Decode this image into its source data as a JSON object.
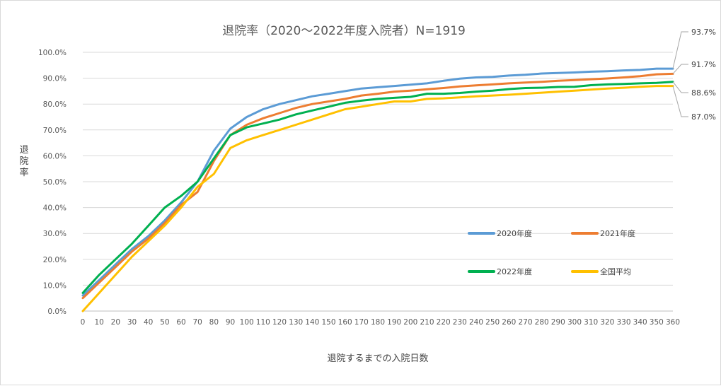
{
  "chart_data": {
    "type": "line",
    "title": "退院率（2020～2022年度入院者）N=1919",
    "xlabel": "退院するまでの入院日数",
    "ylabel": "退院率",
    "xlim": [
      0,
      360
    ],
    "ylim": [
      0,
      100
    ],
    "x_ticks": [
      "0",
      "10",
      "20",
      "30",
      "40",
      "50",
      "60",
      "70",
      "80",
      "90",
      "100",
      "110",
      "120",
      "130",
      "140",
      "150",
      "160",
      "170",
      "180",
      "190",
      "200",
      "210",
      "220",
      "230",
      "240",
      "250",
      "260",
      "270",
      "280",
      "290",
      "300",
      "310",
      "320",
      "330",
      "340",
      "350",
      "360"
    ],
    "y_ticks": [
      "0.0%",
      "10.0%",
      "20.0%",
      "30.0%",
      "40.0%",
      "50.0%",
      "60.0%",
      "70.0%",
      "80.0%",
      "90.0%",
      "100.0%"
    ],
    "grid": "horizontal",
    "series": [
      {
        "name": "2020年度",
        "color": "#5b9bd5",
        "end_label": "93.7%",
        "x": [
          0,
          10,
          20,
          30,
          40,
          50,
          60,
          70,
          80,
          90,
          100,
          110,
          120,
          130,
          140,
          150,
          160,
          170,
          180,
          190,
          200,
          210,
          220,
          230,
          240,
          250,
          260,
          270,
          280,
          290,
          300,
          310,
          320,
          330,
          340,
          350,
          360
        ],
        "values": [
          6,
          12,
          18,
          24,
          29,
          35,
          42,
          50,
          62,
          70.5,
          75,
          78,
          80,
          81.5,
          83,
          84,
          85,
          86,
          86.5,
          87,
          87.5,
          88,
          89,
          89.8,
          90.3,
          90.5,
          91,
          91.3,
          91.8,
          92,
          92.2,
          92.5,
          92.7,
          93,
          93.2,
          93.7,
          93.7
        ]
      },
      {
        "name": "2021年度",
        "color": "#ed7d31",
        "end_label": "91.7%",
        "x": [
          0,
          10,
          20,
          30,
          40,
          50,
          60,
          70,
          80,
          90,
          100,
          110,
          120,
          130,
          140,
          150,
          160,
          170,
          180,
          190,
          200,
          210,
          220,
          230,
          240,
          250,
          260,
          270,
          280,
          290,
          300,
          310,
          320,
          330,
          340,
          350,
          360
        ],
        "values": [
          5,
          11,
          17,
          23,
          28,
          34,
          41,
          46,
          58,
          68,
          72,
          74.5,
          76.5,
          78.5,
          80,
          81,
          82,
          83.3,
          84,
          84.8,
          85.2,
          85.7,
          86.2,
          86.8,
          87.2,
          87.6,
          88,
          88.3,
          88.6,
          89,
          89.3,
          89.6,
          89.9,
          90.3,
          90.8,
          91.5,
          91.7
        ]
      },
      {
        "name": "2022年度",
        "color": "#00b050",
        "end_label": "88.6%",
        "x": [
          0,
          10,
          20,
          30,
          40,
          50,
          60,
          70,
          80,
          90,
          100,
          110,
          120,
          130,
          140,
          150,
          160,
          170,
          180,
          190,
          200,
          210,
          220,
          230,
          240,
          250,
          260,
          270,
          280,
          290,
          300,
          310,
          320,
          330,
          340,
          350,
          360
        ],
        "values": [
          7,
          14,
          20,
          26,
          33,
          40,
          44.5,
          50,
          59,
          68,
          71,
          72.5,
          74,
          76,
          77.5,
          79,
          80.5,
          81.3,
          82,
          82.4,
          82.8,
          84,
          84,
          84.3,
          84.8,
          85.2,
          85.8,
          86.2,
          86.3,
          86.6,
          86.7,
          87.3,
          87.6,
          87.8,
          88,
          88.2,
          88.6
        ]
      },
      {
        "name": "全国平均",
        "color": "#ffc000",
        "end_label": "87.0%",
        "x": [
          0,
          10,
          20,
          30,
          40,
          50,
          60,
          70,
          80,
          90,
          100,
          110,
          120,
          130,
          140,
          150,
          160,
          170,
          180,
          190,
          200,
          210,
          220,
          230,
          240,
          250,
          260,
          270,
          280,
          290,
          300,
          310,
          320,
          330,
          340,
          350,
          360
        ],
        "values": [
          0,
          7,
          14,
          21,
          27,
          33,
          40,
          48,
          53,
          63,
          66,
          68,
          70,
          72,
          74,
          76,
          78,
          79,
          80,
          81,
          81,
          82,
          82.2,
          82.6,
          83,
          83.3,
          83.6,
          84,
          84.4,
          84.8,
          85.2,
          85.6,
          86,
          86.3,
          86.7,
          87,
          87
        ]
      }
    ]
  }
}
